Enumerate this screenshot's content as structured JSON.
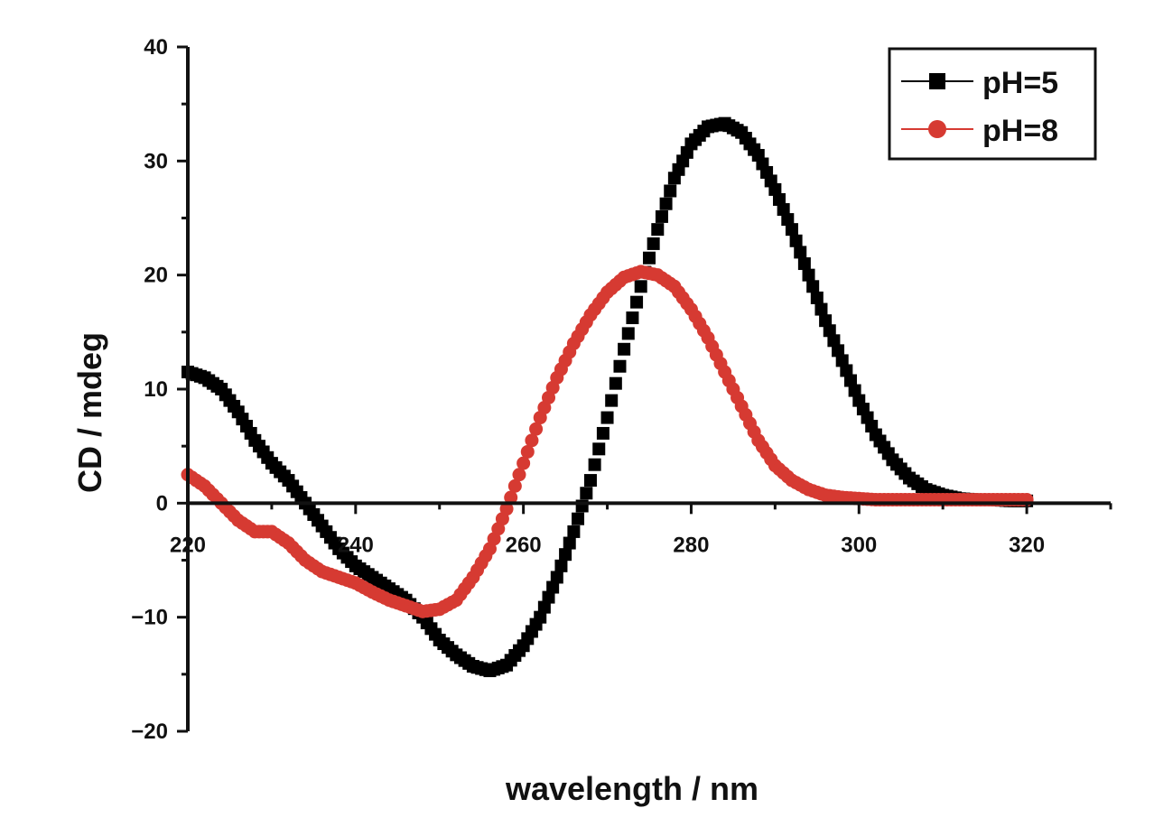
{
  "chart_data": {
    "type": "scatter",
    "xlabel": "wavelength / nm",
    "ylabel": "CD / mdeg",
    "xlim": [
      220,
      330
    ],
    "ylim": [
      -20,
      40
    ],
    "x_ticks": [
      "220",
      "240",
      "260",
      "280",
      "300",
      "320"
    ],
    "y_ticks": [
      "-20",
      "-10",
      "0",
      "10",
      "20",
      "30",
      "40"
    ],
    "legend_position": "top-right",
    "series": [
      {
        "name": "pH=5",
        "color": "#000000",
        "marker": "square",
        "points": [
          [
            220,
            11.5
          ],
          [
            222,
            11
          ],
          [
            224,
            10
          ],
          [
            226,
            8
          ],
          [
            228,
            5.5
          ],
          [
            230,
            3.5
          ],
          [
            232,
            2
          ],
          [
            234,
            0
          ],
          [
            236,
            -2
          ],
          [
            238,
            -4
          ],
          [
            240,
            -5.5
          ],
          [
            242,
            -6.5
          ],
          [
            244,
            -7.5
          ],
          [
            246,
            -8.5
          ],
          [
            248,
            -10
          ],
          [
            250,
            -12
          ],
          [
            252,
            -13.3
          ],
          [
            254,
            -14.3
          ],
          [
            256,
            -14.7
          ],
          [
            258,
            -14.2
          ],
          [
            260,
            -12.5
          ],
          [
            262,
            -10
          ],
          [
            264,
            -6.5
          ],
          [
            266,
            -2.5
          ],
          [
            268,
            2
          ],
          [
            270,
            7.5
          ],
          [
            272,
            13.5
          ],
          [
            274,
            19
          ],
          [
            276,
            24
          ],
          [
            278,
            28.5
          ],
          [
            280,
            31.5
          ],
          [
            282,
            33
          ],
          [
            284,
            33.3
          ],
          [
            286,
            32.5
          ],
          [
            288,
            30.5
          ],
          [
            290,
            27.5
          ],
          [
            292,
            24
          ],
          [
            294,
            20
          ],
          [
            296,
            16
          ],
          [
            298,
            12.5
          ],
          [
            300,
            9
          ],
          [
            302,
            6
          ],
          [
            304,
            3.8
          ],
          [
            306,
            2.2
          ],
          [
            308,
            1.2
          ],
          [
            310,
            0.7
          ],
          [
            312,
            0.4
          ],
          [
            314,
            0.3
          ],
          [
            316,
            0.3
          ],
          [
            318,
            0.2
          ],
          [
            320,
            0.2
          ]
        ]
      },
      {
        "name": "pH=8",
        "color": "#d63a32",
        "marker": "circle",
        "points": [
          [
            220,
            2.5
          ],
          [
            222,
            1.5
          ],
          [
            224,
            0
          ],
          [
            226,
            -1.5
          ],
          [
            228,
            -2.5
          ],
          [
            230,
            -2.5
          ],
          [
            232,
            -3.5
          ],
          [
            234,
            -5
          ],
          [
            236,
            -6
          ],
          [
            238,
            -6.5
          ],
          [
            240,
            -7
          ],
          [
            242,
            -7.8
          ],
          [
            244,
            -8.5
          ],
          [
            246,
            -9
          ],
          [
            248,
            -9.5
          ],
          [
            250,
            -9.3
          ],
          [
            252,
            -8.5
          ],
          [
            254,
            -6.5
          ],
          [
            256,
            -4
          ],
          [
            258,
            -0.5
          ],
          [
            260,
            3.5
          ],
          [
            262,
            7.5
          ],
          [
            264,
            11
          ],
          [
            266,
            14
          ],
          [
            268,
            16.5
          ],
          [
            270,
            18.5
          ],
          [
            272,
            19.8
          ],
          [
            274,
            20.3
          ],
          [
            276,
            20
          ],
          [
            278,
            19
          ],
          [
            280,
            17
          ],
          [
            282,
            14.5
          ],
          [
            284,
            11.5
          ],
          [
            286,
            8.5
          ],
          [
            288,
            5.5
          ],
          [
            290,
            3.3
          ],
          [
            292,
            2
          ],
          [
            294,
            1.2
          ],
          [
            296,
            0.7
          ],
          [
            298,
            0.5
          ],
          [
            300,
            0.4
          ],
          [
            302,
            0.3
          ],
          [
            304,
            0.3
          ],
          [
            306,
            0.3
          ],
          [
            308,
            0.3
          ],
          [
            310,
            0.3
          ],
          [
            312,
            0.3
          ],
          [
            314,
            0.3
          ],
          [
            316,
            0.3
          ],
          [
            318,
            0.3
          ],
          [
            320,
            0.3
          ]
        ]
      }
    ]
  }
}
